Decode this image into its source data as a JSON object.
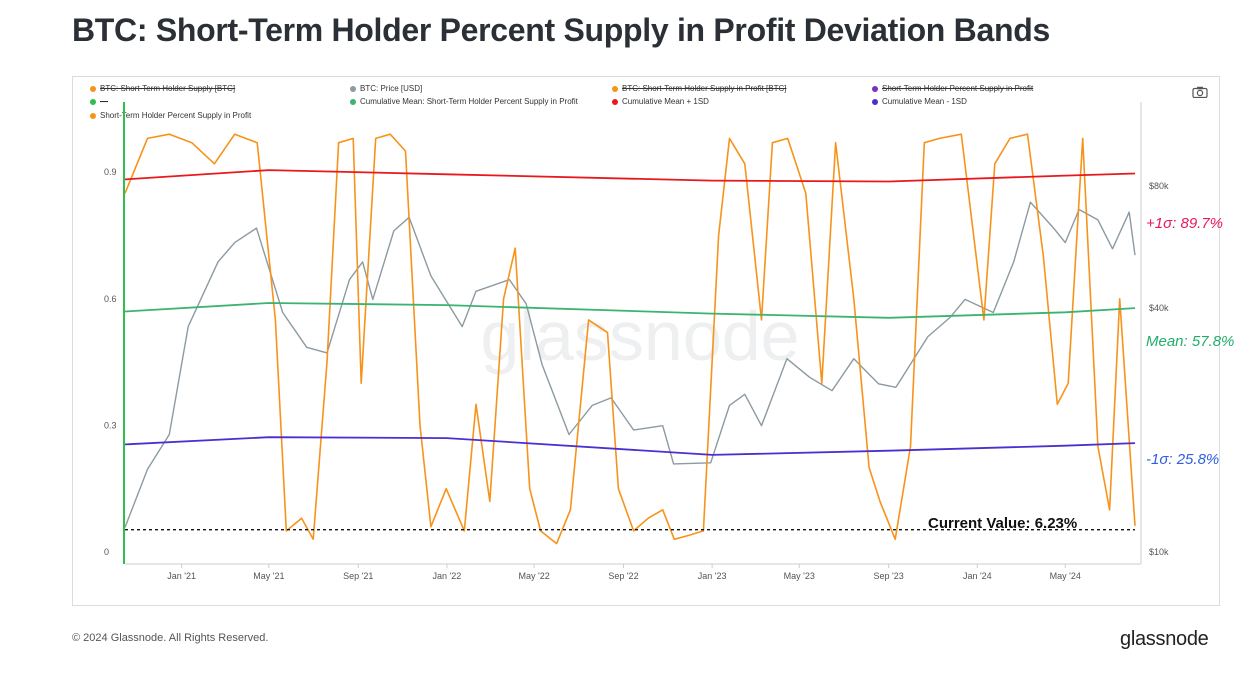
{
  "title": "BTC: Short-Term Holder Percent Supply in Profit Deviation Bands",
  "legend": [
    {
      "label": "BTC: Short-Term Holder Supply [BTC]",
      "color": "#f7931a",
      "struck": true
    },
    {
      "label": "BTC: Price [USD]",
      "color": "#8c9aa1",
      "struck": false
    },
    {
      "label": "BTC: Short-Term Holder Supply in Profit [BTC]",
      "color": "#f7931a",
      "struck": true
    },
    {
      "label": "Short-Term Holder Percent Supply in Profit",
      "color": "#7b2fbf",
      "struck": true
    },
    {
      "label": "---",
      "color": "#2ec04a",
      "struck": true
    },
    {
      "label": "Cumulative Mean: Short-Term Holder Percent Supply in Profit",
      "color": "#3cb371",
      "struck": false
    },
    {
      "label": "Cumulative Mean + 1SD",
      "color": "#e8191d",
      "struck": false
    },
    {
      "label": "Cumulative Mean - 1SD",
      "color": "#4b2fd1",
      "struck": false
    },
    {
      "label": "Short-Term Holder Percent Supply in Profit",
      "color": "#f7931a",
      "struck": false
    }
  ],
  "annotations": {
    "upper": "+1σ: 89.7%",
    "mean": "Mean: 57.8%",
    "lower": "-1σ: 25.8%",
    "current": "Current Value: 6.23%"
  },
  "watermark": "glassnode",
  "footer": {
    "copyright": "© 2024 Glassnode. All Rights Reserved.",
    "brand": "glassnode"
  },
  "colors": {
    "orange": "#f7931a",
    "price": "#8c9aa1",
    "mean": "#3cb371",
    "upper": "#e8191d",
    "lower": "#4b2fd1",
    "upper_label": "#e8195a",
    "mean_label": "#1fae6a",
    "lower_label": "#2f5fe0",
    "start_marker": "#2ec04a"
  },
  "chart_data": {
    "type": "line",
    "x_ticks": [
      "Jan '21",
      "May '21",
      "Sep '21",
      "Jan '22",
      "May '22",
      "Sep '22",
      "Jan '23",
      "May '23",
      "Sep '23",
      "Jan '24",
      "May '24"
    ],
    "x_tick_dates": [
      "2021-01-01",
      "2021-05-01",
      "2021-09-01",
      "2022-01-01",
      "2022-05-01",
      "2022-09-01",
      "2023-01-01",
      "2023-05-01",
      "2023-09-01",
      "2024-01-01",
      "2024-05-01"
    ],
    "x_range": [
      "2020-10-15",
      "2024-08-05"
    ],
    "y_left": {
      "ticks": [
        0,
        0.3,
        0.6,
        0.9
      ],
      "tick_labels": [
        "0",
        "0.3",
        "0.6",
        "0.9"
      ],
      "range": [
        0,
        1.0
      ]
    },
    "y_right": {
      "scale": "log",
      "ticks": [
        10000,
        40000,
        80000
      ],
      "tick_labels": [
        "$10k",
        "$40k",
        "$80k"
      ],
      "range": [
        10000,
        110000
      ]
    },
    "series": [
      {
        "name": "Short-Term Holder Percent Supply in Profit",
        "axis": "left",
        "color": "#f7931a",
        "x": [
          "2020-10-15",
          "2020-11-15",
          "2020-12-15",
          "2021-01-15",
          "2021-02-15",
          "2021-03-15",
          "2021-04-15",
          "2021-05-10",
          "2021-05-25",
          "2021-06-15",
          "2021-07-01",
          "2021-07-20",
          "2021-08-05",
          "2021-08-25",
          "2021-09-05",
          "2021-09-25",
          "2021-10-15",
          "2021-11-05",
          "2021-11-25",
          "2021-12-10",
          "2021-12-31",
          "2022-01-25",
          "2022-02-10",
          "2022-03-01",
          "2022-03-20",
          "2022-04-05",
          "2022-04-25",
          "2022-05-10",
          "2022-06-01",
          "2022-06-20",
          "2022-07-15",
          "2022-08-10",
          "2022-08-25",
          "2022-09-15",
          "2022-10-05",
          "2022-10-25",
          "2022-11-10",
          "2022-12-01",
          "2022-12-20",
          "2023-01-10",
          "2023-01-25",
          "2023-02-15",
          "2023-03-10",
          "2023-03-25",
          "2023-04-15",
          "2023-05-10",
          "2023-06-01",
          "2023-06-20",
          "2023-07-15",
          "2023-08-05",
          "2023-08-20",
          "2023-09-10",
          "2023-10-01",
          "2023-10-20",
          "2023-11-10",
          "2023-12-10",
          "2024-01-10",
          "2024-01-25",
          "2024-02-15",
          "2024-03-10",
          "2024-04-01",
          "2024-04-20",
          "2024-05-05",
          "2024-05-25",
          "2024-06-15",
          "2024-07-01",
          "2024-07-15",
          "2024-08-05"
        ],
        "y": [
          0.85,
          0.98,
          0.99,
          0.97,
          0.92,
          0.99,
          0.97,
          0.55,
          0.05,
          0.08,
          0.03,
          0.45,
          0.97,
          0.98,
          0.4,
          0.98,
          0.99,
          0.95,
          0.3,
          0.06,
          0.15,
          0.05,
          0.35,
          0.12,
          0.6,
          0.72,
          0.15,
          0.05,
          0.02,
          0.1,
          0.55,
          0.52,
          0.15,
          0.05,
          0.08,
          0.1,
          0.03,
          0.04,
          0.05,
          0.75,
          0.98,
          0.92,
          0.55,
          0.97,
          0.98,
          0.85,
          0.4,
          0.97,
          0.6,
          0.2,
          0.12,
          0.03,
          0.25,
          0.97,
          0.98,
          0.99,
          0.55,
          0.92,
          0.98,
          0.99,
          0.7,
          0.35,
          0.4,
          0.98,
          0.25,
          0.1,
          0.6,
          0.062
        ]
      },
      {
        "name": "BTC: Price [USD]",
        "axis": "right",
        "color": "#8c9aa1",
        "x": [
          "2020-10-15",
          "2020-11-15",
          "2020-12-15",
          "2021-01-10",
          "2021-02-20",
          "2021-03-15",
          "2021-04-14",
          "2021-05-20",
          "2021-06-22",
          "2021-07-20",
          "2021-08-20",
          "2021-09-07",
          "2021-09-21",
          "2021-10-20",
          "2021-11-10",
          "2021-12-10",
          "2022-01-22",
          "2022-02-10",
          "2022-03-28",
          "2022-04-20",
          "2022-05-12",
          "2022-06-18",
          "2022-07-20",
          "2022-08-15",
          "2022-09-15",
          "2022-10-25",
          "2022-11-09",
          "2022-12-30",
          "2023-01-25",
          "2023-02-15",
          "2023-03-10",
          "2023-04-14",
          "2023-05-15",
          "2023-06-15",
          "2023-07-15",
          "2023-08-18",
          "2023-09-11",
          "2023-10-25",
          "2023-11-25",
          "2023-12-15",
          "2024-01-23",
          "2024-02-20",
          "2024-03-14",
          "2024-04-15",
          "2024-05-01",
          "2024-05-20",
          "2024-06-15",
          "2024-07-05",
          "2024-07-28",
          "2024-08-05"
        ],
        "y": [
          11500,
          16000,
          19500,
          36000,
          52000,
          58000,
          63000,
          39000,
          32000,
          31000,
          47000,
          52000,
          42000,
          62000,
          67000,
          48000,
          36000,
          44000,
          47000,
          41000,
          29000,
          19500,
          23000,
          24000,
          20000,
          20500,
          16500,
          16600,
          23000,
          24500,
          20500,
          30000,
          27000,
          25000,
          30000,
          26000,
          25500,
          34000,
          38000,
          42000,
          39000,
          52000,
          73000,
          63000,
          58000,
          70000,
          66000,
          56000,
          69000,
          54000
        ]
      },
      {
        "name": "Cumulative Mean: Short-Term Holder Percent Supply in Profit",
        "axis": "left",
        "color": "#3cb371",
        "x": [
          "2020-10-15",
          "2021-05-01",
          "2022-01-01",
          "2023-01-01",
          "2023-09-01",
          "2024-05-01",
          "2024-08-05"
        ],
        "y": [
          0.57,
          0.59,
          0.585,
          0.565,
          0.555,
          0.568,
          0.578
        ]
      },
      {
        "name": "Cumulative Mean + 1SD",
        "axis": "left",
        "color": "#e8191d",
        "x": [
          "2020-10-15",
          "2021-05-01",
          "2022-01-01",
          "2023-01-01",
          "2023-09-01",
          "2024-05-01",
          "2024-08-05"
        ],
        "y": [
          0.883,
          0.905,
          0.895,
          0.88,
          0.878,
          0.892,
          0.897
        ]
      },
      {
        "name": "Cumulative Mean - 1SD",
        "axis": "left",
        "color": "#4b2fd1",
        "x": [
          "2020-10-15",
          "2021-05-01",
          "2022-01-01",
          "2023-01-01",
          "2023-09-01",
          "2024-05-01",
          "2024-08-05"
        ],
        "y": [
          0.255,
          0.272,
          0.27,
          0.23,
          0.24,
          0.252,
          0.258
        ]
      }
    ],
    "current_value": 0.0623
  }
}
